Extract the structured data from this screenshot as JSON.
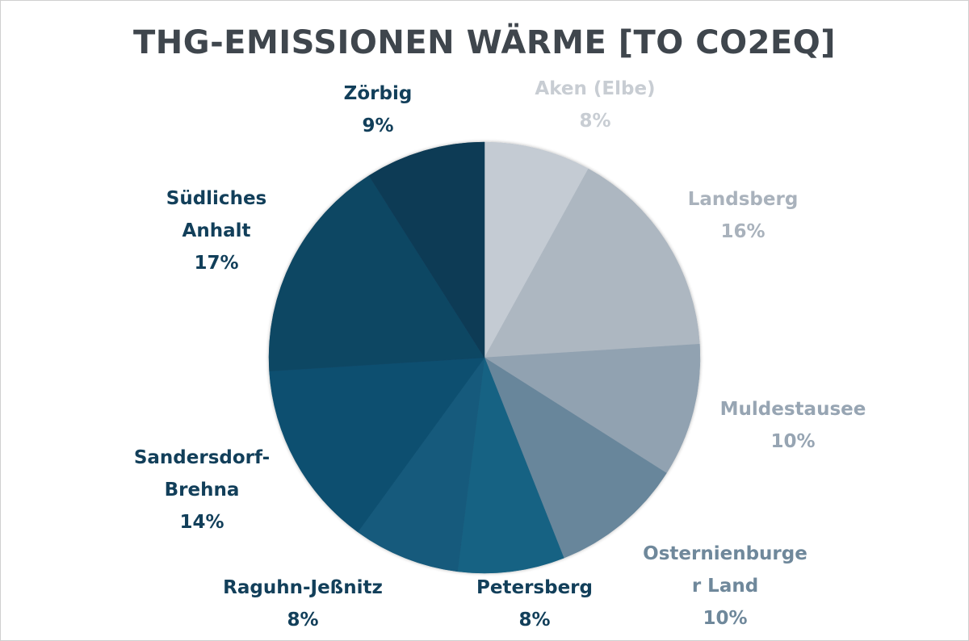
{
  "chart_data": {
    "type": "pie",
    "title": "THG-EMISSIONEN WÄRME [TO CO2EQ]",
    "start_angle": "12 o'clock, clockwise",
    "slices": [
      {
        "label": "Aken (Elbe)",
        "label_lines": [
          "Aken (Elbe)"
        ],
        "value": 8,
        "pct": "8%",
        "color": "#c4cbd3",
        "label_color": "#c8cdd3"
      },
      {
        "label": "Landsberg",
        "label_lines": [
          "Landsberg"
        ],
        "value": 16,
        "pct": "16%",
        "color": "#adb7c1",
        "label_color": "#a9b2bc"
      },
      {
        "label": "Muldestausee",
        "label_lines": [
          "Muldestausee"
        ],
        "value": 10,
        "pct": "10%",
        "color": "#91a2b1",
        "label_color": "#97a5b3"
      },
      {
        "label": "Osternienburger Land",
        "label_lines": [
          "Osternienburge",
          "r Land"
        ],
        "value": 10,
        "pct": "10%",
        "color": "#68869b",
        "label_color": "#6f889b"
      },
      {
        "label": "Petersberg",
        "label_lines": [
          "Petersberg"
        ],
        "value": 8,
        "pct": "8%",
        "color": "#186283",
        "label_color": "#123f5a"
      },
      {
        "label": "Raguhn-Jeßnitz",
        "label_lines": [
          "Raguhn-Jeßnitz"
        ],
        "value": 8,
        "pct": "8%",
        "color": "#155a7b",
        "label_color": "#123f5a"
      },
      {
        "label": "Sandersdorf-Brehna",
        "label_lines": [
          "Sandersdorf-",
          "Brehna"
        ],
        "value": 14,
        "pct": "14%",
        "color": "#114f70",
        "label_color": "#123f5a"
      },
      {
        "label": "Südliches Anhalt",
        "label_lines": [
          "Südliches",
          "Anhalt"
        ],
        "value": 17,
        "pct": "17%",
        "color": "#0e4664",
        "label_color": "#123f5a"
      },
      {
        "label": "Zörbig",
        "label_lines": [
          "Zörbig"
        ],
        "value": 9,
        "pct": "9%",
        "color": "#0d3a55",
        "label_color": "#123f5a"
      }
    ]
  }
}
